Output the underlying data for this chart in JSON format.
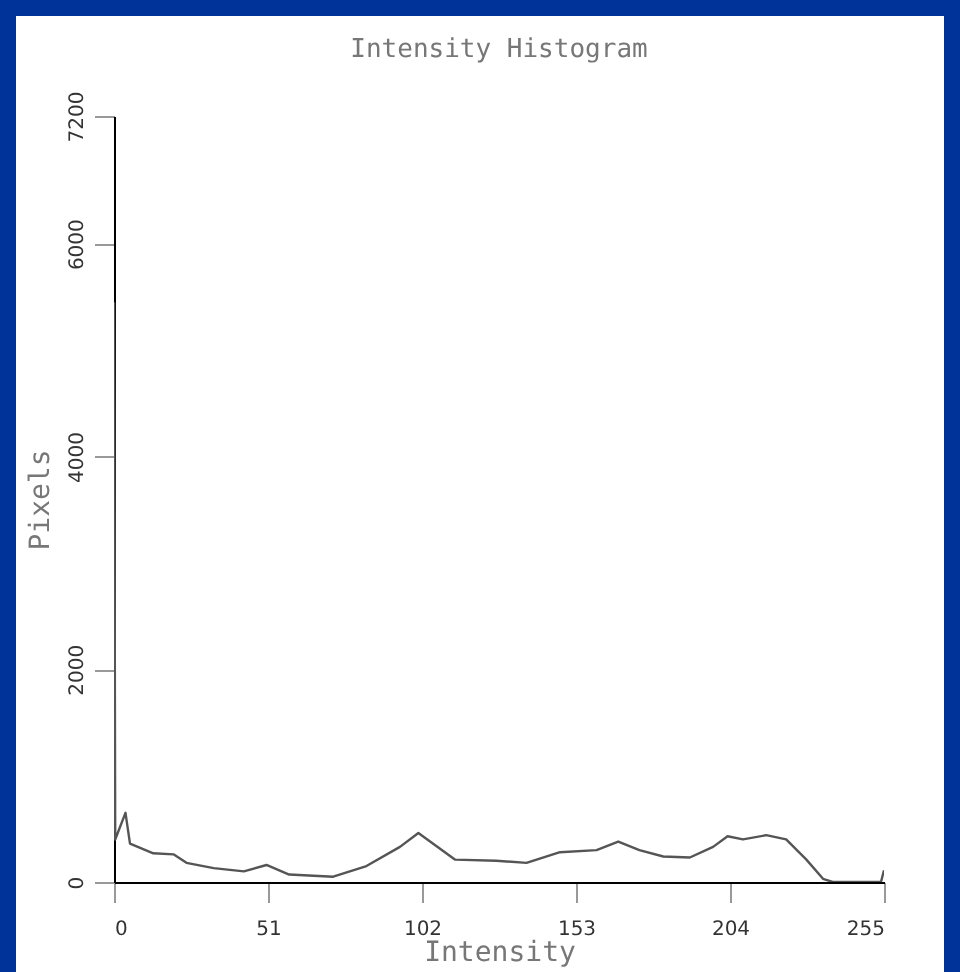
{
  "chart_data": {
    "type": "line",
    "title": "Intensity Histogram",
    "xlabel": "Intensity",
    "ylabel": "Pixels",
    "x": [
      0,
      0.4,
      3.8,
      5.3,
      13,
      19.7,
      24,
      33,
      43,
      50.5,
      58,
      72.6,
      83.6,
      94.7,
      100.8,
      105.7,
      113,
      126.6,
      136.6,
      147.7,
      159.8,
      167,
      174,
      181.9,
      190.7,
      198.4,
      203.2,
      208.3,
      216,
      222.6,
      229.3,
      234.8,
      238,
      254,
      255
    ],
    "series": [
      {
        "color": "#555555",
        "values": [
          5450,
          400,
          650,
          360,
          270,
          260,
          180,
          130,
          100,
          160,
          70,
          50,
          150,
          330,
          460,
          360,
          210,
          200,
          180,
          280,
          300,
          380,
          300,
          240,
          230,
          330,
          430,
          400,
          440,
          400,
          210,
          30,
          0,
          0,
          110
        ]
      }
    ],
    "xlim": [
      0,
      255
    ],
    "xticks": [
      0,
      51,
      102,
      153,
      204,
      255
    ],
    "ylim": [
      0,
      7200
    ],
    "yticks": [
      0,
      2000,
      4000,
      6000,
      7200
    ],
    "grid": false
  }
}
